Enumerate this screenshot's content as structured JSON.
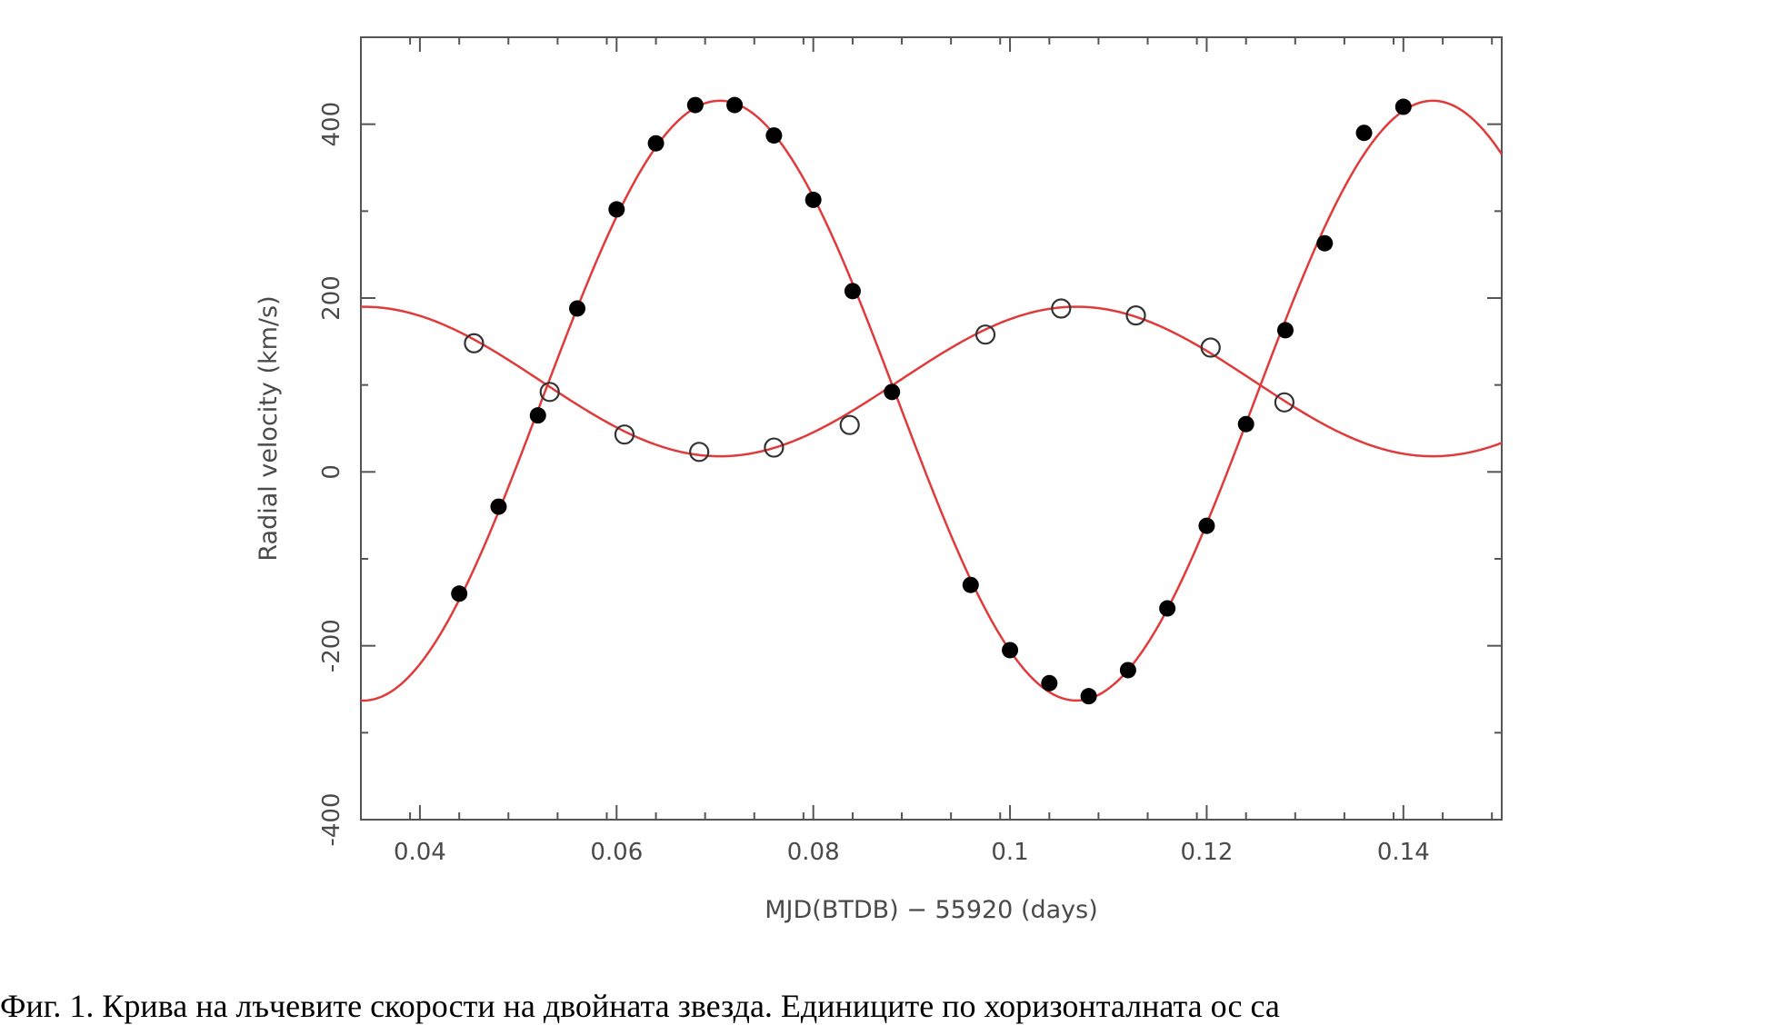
{
  "chart_data": {
    "type": "scatter",
    "title": "",
    "xlabel": "MJD(BTDB) − 55920 (days)",
    "ylabel": "Radial velocity (km/s)",
    "xlim": [
      0.034,
      0.15
    ],
    "ylim": [
      -400,
      500
    ],
    "x_ticks": [
      0.04,
      0.06,
      0.08,
      0.1,
      0.12,
      0.14
    ],
    "x_tick_labels": [
      "0.04",
      "0.06",
      "0.08",
      "0.1",
      "0.12",
      "0.14"
    ],
    "y_ticks": [
      -400,
      -200,
      0,
      200,
      400
    ],
    "y_tick_labels": [
      "-400",
      "-200",
      "0",
      "200",
      "400"
    ],
    "grid": false,
    "fit_color": "#e03a3a",
    "series": [
      {
        "marker": "filled-circle",
        "x": [
          0.044,
          0.048,
          0.052,
          0.056,
          0.06,
          0.064,
          0.068,
          0.072,
          0.076,
          0.08,
          0.084,
          0.088,
          0.096,
          0.1,
          0.104,
          0.108,
          0.112,
          0.116,
          0.12,
          0.124,
          0.128,
          0.132,
          0.136,
          0.14
        ],
        "y": [
          -140,
          -40,
          65,
          188,
          302,
          378,
          422,
          422,
          387,
          313,
          208,
          92,
          -130,
          -205,
          -243,
          -258,
          -228,
          -157,
          -62,
          55,
          163,
          263,
          390,
          420
        ]
      },
      {
        "marker": "open-circle",
        "x": [
          0.0455,
          0.0532,
          0.0608,
          0.0684,
          0.076,
          0.0837,
          0.0975,
          0.1052,
          0.1128,
          0.1204,
          0.1279
        ],
        "y": [
          148,
          92,
          43,
          23,
          28,
          54,
          158,
          188,
          180,
          143,
          80
        ]
      }
    ],
    "fit_curves": [
      {
        "model": "sine",
        "gamma": 82,
        "K": 345,
        "t_max": 0.0705,
        "period": 0.0725
      },
      {
        "model": "sine",
        "gamma": 104,
        "K": -86,
        "t_max": 0.0705,
        "period": 0.0725
      }
    ]
  },
  "caption": "Фиг. 1. Крива на лъчевите скорости на двойната звезда. Единиците по хоризонталната ос са"
}
